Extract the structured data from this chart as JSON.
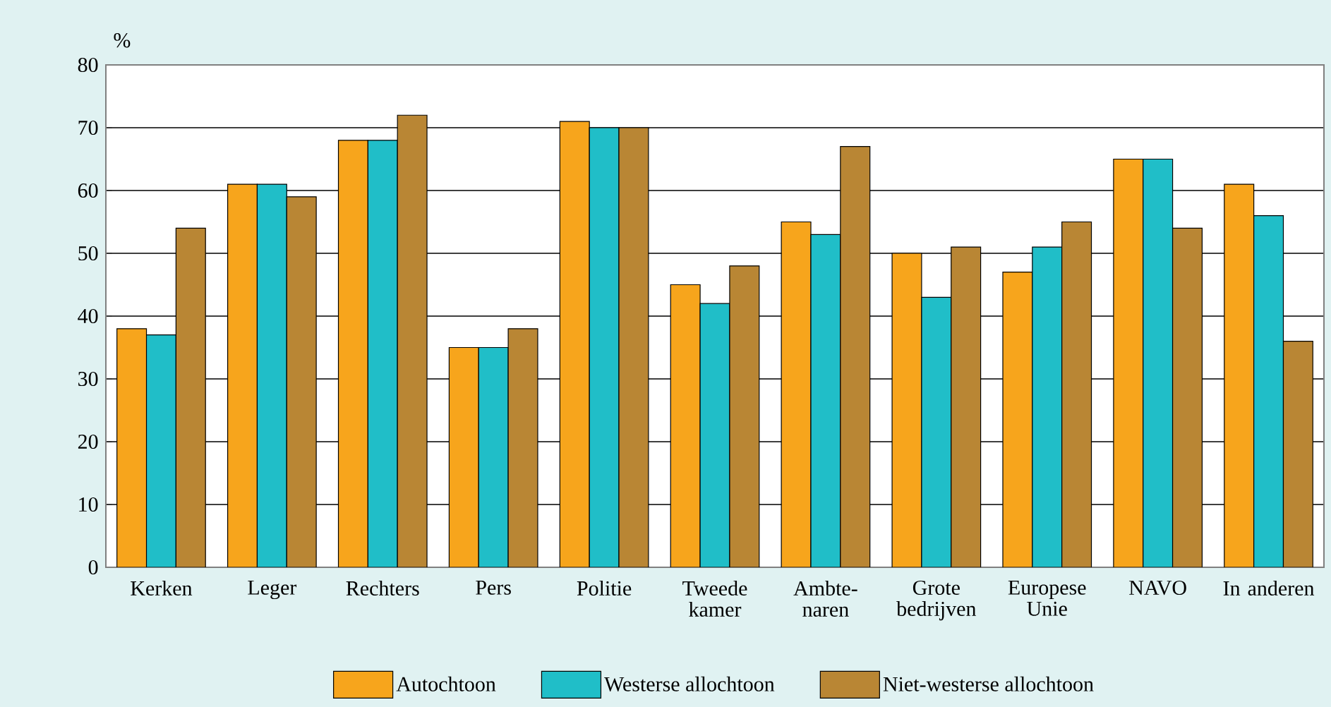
{
  "chart_data": {
    "type": "bar",
    "ylabel": "%",
    "categories": [
      "Kerken",
      "Leger",
      "Rechters",
      "Pers",
      "Politie",
      "Tweede kamer",
      "Ambte- naren",
      "Grote bedrijven",
      "Europese Unie",
      "NAVO",
      "In anderen"
    ],
    "series": [
      {
        "name": "Autochtoon",
        "color": "#f7a51c",
        "values": [
          38,
          61,
          68,
          35,
          71,
          45,
          55,
          50,
          47,
          65,
          61
        ]
      },
      {
        "name": "Westerse allochtoon",
        "color": "#20bec8",
        "values": [
          37,
          61,
          68,
          35,
          70,
          42,
          53,
          43,
          51,
          65,
          56
        ]
      },
      {
        "name": "Niet-westerse allochtoon",
        "color": "#b98634",
        "values": [
          54,
          59,
          72,
          38,
          70,
          48,
          67,
          51,
          55,
          54,
          36
        ]
      }
    ],
    "ylim": [
      0,
      80
    ],
    "yticks": [
      0,
      10,
      20,
      30,
      40,
      50,
      60,
      70,
      80
    ],
    "grid": "y",
    "legend": "bottom"
  }
}
